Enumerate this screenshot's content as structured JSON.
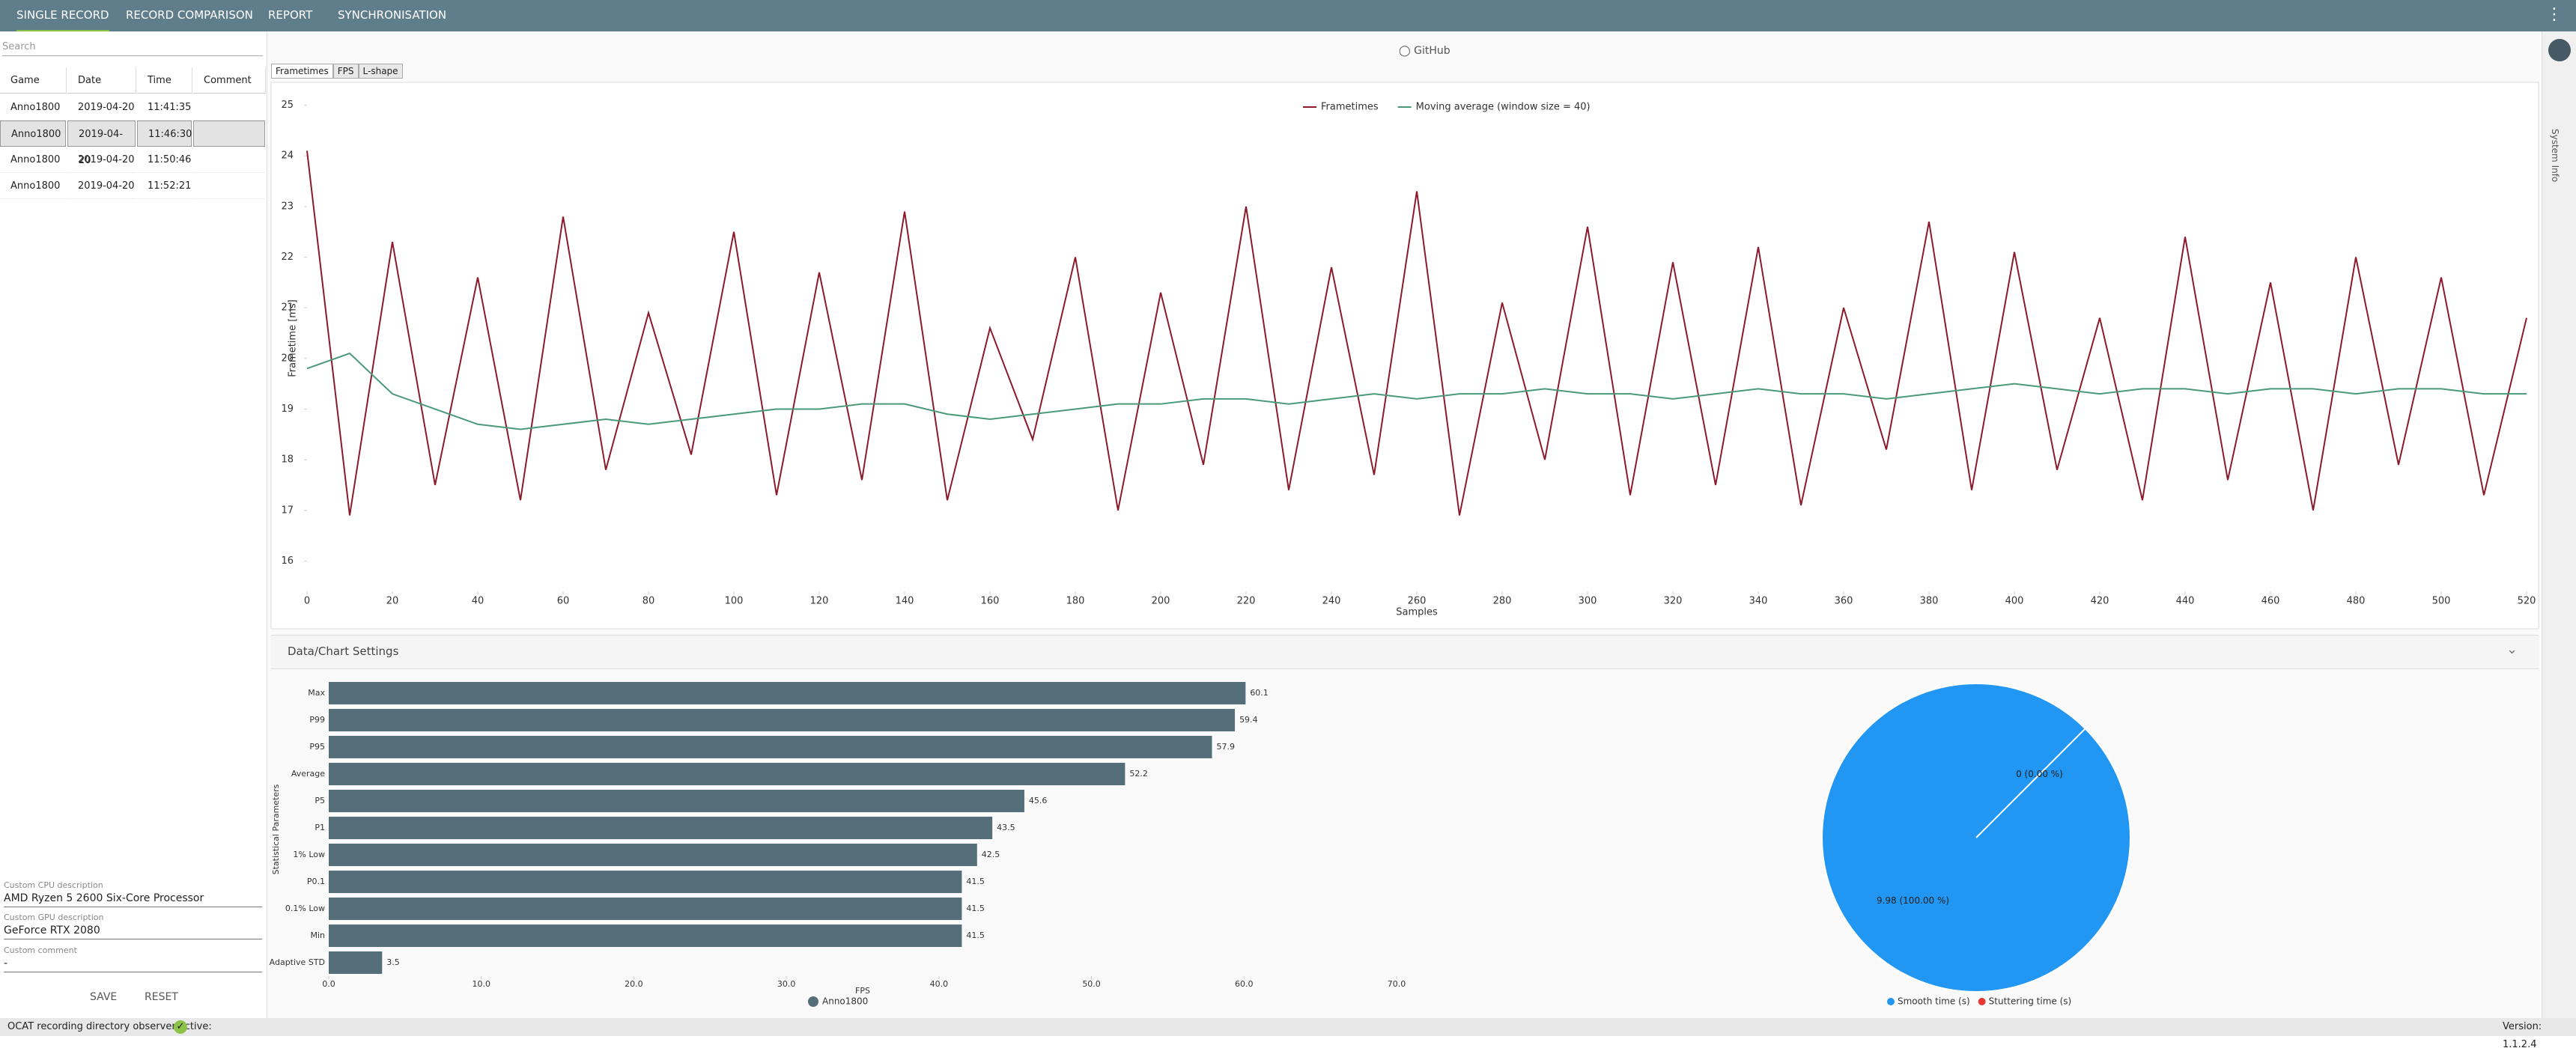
{
  "nav": {
    "tabs": [
      "SINGLE RECORD",
      "RECORD COMPARISON",
      "REPORT",
      "SYNCHRONISATION"
    ]
  },
  "records": {
    "search": "Search",
    "columns": [
      "Game",
      "Date",
      "Time",
      "Comment"
    ],
    "rows": [
      [
        "Anno1800",
        "2019-04-20",
        "11:41:35"
      ],
      [
        "Anno1800",
        "2019-04-20",
        "11:46:30"
      ],
      [
        "Anno1800",
        "2019-04-20",
        "11:50:46"
      ],
      [
        "Anno1800",
        "2019-04-20",
        "11:52:21"
      ]
    ]
  },
  "system": {
    "cpu_label": "Custom CPU description",
    "cpu": "AMD Ryzen 5 2600 Six-Core Processor",
    "gpu_label": "Custom GPU description",
    "gpu": "GeForce RTX 2080",
    "comment_label": "Custom comment",
    "comment": "-",
    "save": "SAVE",
    "reset": "RESET"
  },
  "status": {
    "observer": "OCAT recording directory observer active:",
    "version": "Version: 1.1.2.4"
  },
  "github": "GitHub",
  "chart_tabs": [
    "Frametimes",
    "FPS",
    "L-shape"
  ],
  "settings_title": "Data/Chart Settings",
  "side_tab": "System Info",
  "chart_data": [
    {
      "type": "line",
      "x_label": "Samples",
      "y_label": "Frametime [ms]",
      "legend": "top-center",
      "x": [
        0,
        10,
        20,
        30,
        40,
        50,
        60,
        70,
        80,
        90,
        100,
        110,
        120,
        130,
        140,
        150,
        160,
        170,
        180,
        190,
        200,
        210,
        220,
        230,
        240,
        250,
        260,
        270,
        280,
        290,
        300,
        310,
        320,
        330,
        340,
        350,
        360,
        370,
        380,
        390,
        400,
        410,
        420,
        430,
        440,
        450,
        460,
        470,
        480,
        490,
        500,
        510,
        520
      ],
      "series": [
        {
          "name": "Frametimes",
          "color": "#8b1a2b",
          "values": [
            24.1,
            16.9,
            22.3,
            17.5,
            21.6,
            17.2,
            22.8,
            17.8,
            20.9,
            18.1,
            22.5,
            17.3,
            21.7,
            17.6,
            22.9,
            17.2,
            20.6,
            18.4,
            22.0,
            17.0,
            21.3,
            17.9,
            23.0,
            17.4,
            21.8,
            17.7,
            23.3,
            16.9,
            21.1,
            18.0,
            22.6,
            17.3,
            21.9,
            17.5,
            22.2,
            17.1,
            21.0,
            18.2,
            22.7,
            17.4,
            22.1,
            17.8,
            20.8,
            17.2,
            22.4,
            17.6,
            21.5,
            17.0,
            22.0,
            17.9,
            21.6,
            17.3,
            20.8
          ]
        },
        {
          "name": "Moving average (window size = 40)",
          "color": "#4a9a7a",
          "values": [
            19.8,
            20.1,
            19.3,
            19.0,
            18.7,
            18.6,
            18.7,
            18.8,
            18.7,
            18.8,
            18.9,
            19.0,
            19.0,
            19.1,
            19.1,
            18.9,
            18.8,
            18.9,
            19.0,
            19.1,
            19.1,
            19.2,
            19.2,
            19.1,
            19.2,
            19.3,
            19.2,
            19.3,
            19.3,
            19.4,
            19.3,
            19.3,
            19.2,
            19.3,
            19.4,
            19.3,
            19.3,
            19.2,
            19.3,
            19.4,
            19.5,
            19.4,
            19.3,
            19.4,
            19.4,
            19.3,
            19.4,
            19.4,
            19.3,
            19.4,
            19.4,
            19.3,
            19.3
          ]
        }
      ],
      "xlim": [
        0,
        520
      ],
      "xticks": [
        0,
        20,
        40,
        60,
        80,
        100,
        120,
        140,
        160,
        180,
        200,
        220,
        240,
        260,
        280,
        300,
        320,
        340,
        360,
        380,
        400,
        420,
        440,
        460,
        480,
        500,
        520
      ],
      "ylim": [
        15.4,
        25.2
      ],
      "yticks": [
        16,
        17,
        18,
        19,
        20,
        21,
        22,
        23,
        24,
        25
      ],
      "grid": false
    },
    {
      "type": "hbar",
      "x_label": "FPS",
      "y_label": "Statistical Parameters",
      "legend": "bottom-center",
      "categories": [
        "Max",
        "P99",
        "P95",
        "Average",
        "P5",
        "P1",
        "1% Low",
        "P0.1",
        "0.1% Low",
        "Min",
        "Adaptive STD"
      ],
      "series": [
        {
          "name": "Anno1800",
          "color": "#546e7a",
          "values": [
            60.1,
            59.4,
            57.9,
            52.2,
            45.6,
            43.5,
            42.5,
            41.5,
            41.5,
            41.5,
            3.5
          ]
        }
      ],
      "xlim": [
        0,
        70
      ],
      "xticks": [
        {
          "value": 0,
          "label": "0.0"
        },
        {
          "value": 10,
          "label": "10.0"
        },
        {
          "value": 20,
          "label": "20.0"
        },
        {
          "value": 30,
          "label": "30.0"
        },
        {
          "value": 40,
          "label": "40.0"
        },
        {
          "value": 50,
          "label": "50.0"
        },
        {
          "value": 60,
          "label": "60.0"
        },
        {
          "value": 70,
          "label": "70.0"
        }
      ],
      "grid": false
    },
    {
      "type": "pie",
      "legend": "bottom-center",
      "categories": [
        "Smooth time (s)",
        "Stuttering time (s)"
      ],
      "values": [
        9.98,
        0
      ],
      "value_labels": [
        "9.98 (100.00 %)",
        "0 (0.00 %)"
      ],
      "colors": [
        "#2196f3",
        "#e53935"
      ]
    }
  ]
}
